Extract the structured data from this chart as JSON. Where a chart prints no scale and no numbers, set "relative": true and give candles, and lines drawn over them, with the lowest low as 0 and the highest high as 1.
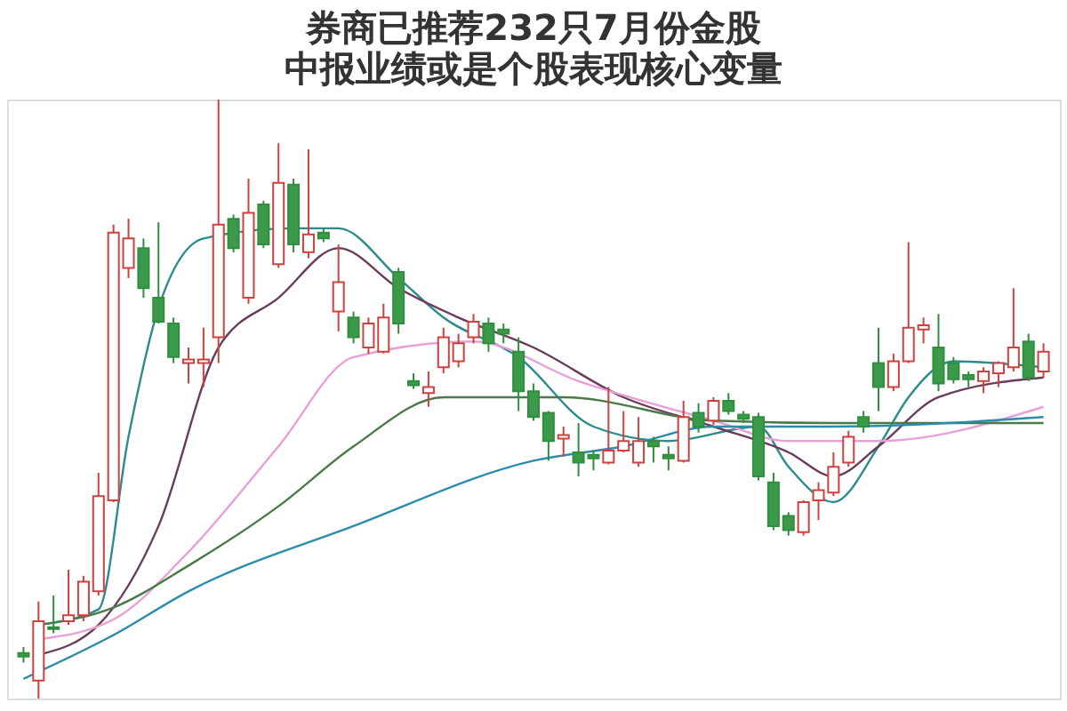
{
  "chart_data": {
    "type": "candlestick",
    "title": "券商已推荐232只7月份金股",
    "subtitle": "中报业绩或是个股表现核心变量",
    "relative": true,
    "categories": [
      null,
      null,
      null,
      null,
      null,
      null,
      null,
      null,
      null,
      null,
      null,
      null,
      null,
      null,
      null,
      null,
      null,
      null,
      null,
      null,
      null,
      null,
      null,
      null,
      null,
      null,
      null,
      null,
      null,
      null,
      null,
      null,
      null,
      null,
      null,
      null,
      null,
      null,
      null,
      null,
      null,
      null,
      null,
      null,
      null,
      null,
      null,
      null,
      null,
      null,
      null,
      null,
      null,
      null,
      null,
      null,
      null,
      null,
      null,
      null,
      null,
      null,
      null,
      null,
      null,
      null,
      null,
      null,
      null
    ],
    "ohlc": [
      [
        0.076,
        0.086,
        0.06,
        0.07
      ],
      [
        0.03,
        0.162,
        0.0,
        0.129
      ],
      [
        0.119,
        0.172,
        0.109,
        0.116
      ],
      [
        0.129,
        0.215,
        0.123,
        0.139
      ],
      [
        0.139,
        0.205,
        0.129,
        0.195
      ],
      [
        0.179,
        0.377,
        0.172,
        0.338
      ],
      [
        0.331,
        0.791,
        0.328,
        0.778
      ],
      [
        0.719,
        0.801,
        0.702,
        0.768
      ],
      [
        0.752,
        0.768,
        0.669,
        0.685
      ],
      [
        0.669,
        0.795,
        0.626,
        0.629
      ],
      [
        0.626,
        0.636,
        0.56,
        0.57
      ],
      [
        0.56,
        0.586,
        0.526,
        0.566
      ],
      [
        0.56,
        0.619,
        0.52,
        0.566
      ],
      [
        0.603,
        1.0,
        0.56,
        0.791
      ],
      [
        0.801,
        0.808,
        0.745,
        0.752
      ],
      [
        0.669,
        0.868,
        0.659,
        0.811
      ],
      [
        0.825,
        0.831,
        0.752,
        0.758
      ],
      [
        0.725,
        0.927,
        0.719,
        0.861
      ],
      [
        0.858,
        0.868,
        0.745,
        0.758
      ],
      [
        0.745,
        0.917,
        0.735,
        0.775
      ],
      [
        0.778,
        0.785,
        0.762,
        0.768
      ],
      [
        0.646,
        0.758,
        0.613,
        0.695
      ],
      [
        0.636,
        0.646,
        0.593,
        0.603
      ],
      [
        0.586,
        0.636,
        0.576,
        0.626
      ],
      [
        0.579,
        0.659,
        0.576,
        0.636
      ],
      [
        0.712,
        0.719,
        0.609,
        0.626
      ],
      [
        0.53,
        0.543,
        0.517,
        0.523
      ],
      [
        0.51,
        0.546,
        0.487,
        0.52
      ],
      [
        0.553,
        0.619,
        0.543,
        0.603
      ],
      [
        0.563,
        0.609,
        0.553,
        0.593
      ],
      [
        0.603,
        0.642,
        0.593,
        0.629
      ],
      [
        0.626,
        0.636,
        0.579,
        0.593
      ],
      [
        0.616,
        0.626,
        0.593,
        0.609
      ],
      [
        0.579,
        0.603,
        0.48,
        0.513
      ],
      [
        0.513,
        0.526,
        0.464,
        0.47
      ],
      [
        0.477,
        0.48,
        0.397,
        0.43
      ],
      [
        0.434,
        0.454,
        0.404,
        0.44
      ],
      [
        0.411,
        0.46,
        0.371,
        0.394
      ],
      [
        0.407,
        0.414,
        0.381,
        0.401
      ],
      [
        0.394,
        0.52,
        0.391,
        0.414
      ],
      [
        0.414,
        0.48,
        0.411,
        0.43
      ],
      [
        0.394,
        0.47,
        0.387,
        0.43
      ],
      [
        0.43,
        0.437,
        0.394,
        0.421
      ],
      [
        0.407,
        0.421,
        0.381,
        0.401
      ],
      [
        0.397,
        0.497,
        0.394,
        0.47
      ],
      [
        0.477,
        0.493,
        0.444,
        0.454
      ],
      [
        0.464,
        0.503,
        0.457,
        0.497
      ],
      [
        0.497,
        0.51,
        0.474,
        0.48
      ],
      [
        0.474,
        0.48,
        0.46,
        0.467
      ],
      [
        0.47,
        0.477,
        0.364,
        0.371
      ],
      [
        0.361,
        0.377,
        0.281,
        0.288
      ],
      [
        0.305,
        0.311,
        0.272,
        0.281
      ],
      [
        0.278,
        0.331,
        0.272,
        0.328
      ],
      [
        0.331,
        0.361,
        0.298,
        0.348
      ],
      [
        0.344,
        0.411,
        0.338,
        0.387
      ],
      [
        0.394,
        0.447,
        0.387,
        0.437
      ],
      [
        0.47,
        0.48,
        0.444,
        0.454
      ],
      [
        0.56,
        0.619,
        0.48,
        0.52
      ],
      [
        0.52,
        0.576,
        0.513,
        0.563
      ],
      [
        0.563,
        0.762,
        0.56,
        0.619
      ],
      [
        0.616,
        0.636,
        0.593,
        0.623
      ],
      [
        0.586,
        0.642,
        0.513,
        0.526
      ],
      [
        0.56,
        0.57,
        0.526,
        0.533
      ],
      [
        0.54,
        0.546,
        0.52,
        0.533
      ],
      [
        0.53,
        0.553,
        0.51,
        0.546
      ],
      [
        0.543,
        0.563,
        0.52,
        0.56
      ],
      [
        0.553,
        0.685,
        0.546,
        0.586
      ],
      [
        0.596,
        0.609,
        0.53,
        0.536
      ],
      [
        0.546,
        0.593,
        0.536,
        0.579
      ]
    ],
    "series": [
      {
        "type": "line",
        "color": "#2e8b8b",
        "values": [
          null,
          0.123,
          null,
          null,
          null,
          0.149,
          null,
          0.437,
          null,
          0.652,
          null,
          null,
          0.768,
          null,
          null,
          null,
          null,
          null,
          0.785,
          null,
          null,
          0.785,
          null,
          null,
          null,
          0.702,
          null,
          null,
          0.636,
          null,
          null,
          null,
          null,
          0.57,
          null,
          null,
          null,
          null,
          0.454,
          null,
          null,
          null,
          null,
          0.43,
          null,
          null,
          null,
          null,
          null,
          0.454,
          null,
          0.387,
          null,
          null,
          0.328,
          null,
          null,
          0.421,
          null,
          0.503,
          null,
          null,
          0.563,
          null,
          null,
          null,
          null,
          null,
          0.553
        ]
      },
      {
        "type": "line",
        "color": "#6b3b5b",
        "values": [
          null,
          0.073,
          null,
          null,
          null,
          0.123,
          null,
          null,
          null,
          0.288,
          null,
          null,
          null,
          0.586,
          null,
          null,
          null,
          0.669,
          null,
          null,
          null,
          0.752,
          null,
          null,
          null,
          0.685,
          null,
          null,
          null,
          0.636,
          null,
          null,
          null,
          null,
          0.586,
          null,
          null,
          null,
          null,
          null,
          0.503,
          null,
          null,
          null,
          null,
          null,
          0.454,
          null,
          null,
          null,
          null,
          0.411,
          null,
          null,
          0.371,
          null,
          null,
          0.421,
          null,
          null,
          null,
          0.503,
          null,
          null,
          null,
          null,
          null,
          null,
          0.536
        ]
      },
      {
        "type": "line",
        "color": "#e8a0d8",
        "values": [
          null,
          0.099,
          null,
          null,
          null,
          null,
          0.132,
          null,
          null,
          null,
          null,
          0.245,
          null,
          null,
          null,
          null,
          null,
          0.421,
          null,
          null,
          null,
          null,
          0.57,
          null,
          null,
          null,
          null,
          null,
          null,
          null,
          0.596,
          null,
          null,
          null,
          null,
          null,
          null,
          0.53,
          null,
          null,
          null,
          null,
          null,
          null,
          null,
          null,
          0.464,
          null,
          null,
          null,
          null,
          0.43,
          null,
          null,
          null,
          null,
          null,
          0.43,
          null,
          null,
          null,
          null,
          null,
          null,
          null,
          null,
          null,
          null,
          0.487
        ]
      },
      {
        "type": "line",
        "color": "#4a7a4a",
        "values": [
          null,
          0.123,
          null,
          null,
          null,
          null,
          0.152,
          null,
          null,
          null,
          null,
          0.222,
          null,
          null,
          null,
          null,
          null,
          0.321,
          null,
          null,
          null,
          null,
          0.421,
          null,
          null,
          null,
          null,
          null,
          0.503,
          null,
          null,
          null,
          null,
          null,
          null,
          null,
          0.503,
          null,
          null,
          null,
          null,
          null,
          null,
          null,
          null,
          null,
          0.464,
          null,
          null,
          null,
          null,
          null,
          null,
          null,
          0.46,
          null,
          null,
          null,
          null,
          null,
          null,
          null,
          null,
          null,
          null,
          null,
          null,
          null,
          0.46
        ]
      },
      {
        "type": "line",
        "color": "#2b8cab",
        "values": [
          0.033,
          null,
          null,
          null,
          null,
          null,
          0.106,
          null,
          null,
          null,
          null,
          0.179,
          null,
          null,
          null,
          null,
          null,
          null,
          null,
          null,
          null,
          null,
          0.288,
          null,
          null,
          null,
          null,
          null,
          null,
          null,
          null,
          null,
          null,
          null,
          0.397,
          null,
          null,
          null,
          null,
          null,
          0.421,
          null,
          null,
          null,
          null,
          null,
          0.454,
          null,
          null,
          null,
          null,
          null,
          null,
          null,
          0.454,
          null,
          null,
          null,
          null,
          null,
          null,
          null,
          null,
          null,
          null,
          null,
          null,
          null,
          0.47
        ]
      }
    ]
  }
}
